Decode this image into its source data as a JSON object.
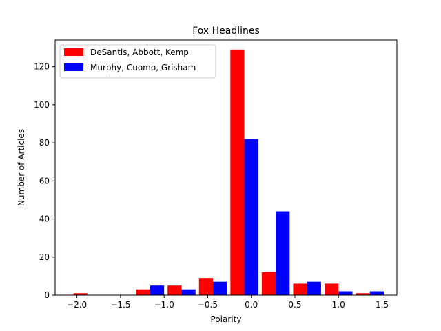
{
  "chart_data": {
    "type": "bar",
    "title": "Fox Headlines",
    "xlabel": "Polarity",
    "ylabel": "Number of Articles",
    "xlim": [
      -2.25,
      1.67
    ],
    "ylim": [
      0,
      134
    ],
    "xticks": [
      -2.0,
      -1.5,
      -1.0,
      -0.5,
      0.0,
      0.5,
      1.0,
      1.5
    ],
    "xtick_labels": [
      "−2.0",
      "−1.5",
      "−1.0",
      "−0.5",
      "0.0",
      "0.5",
      "1.0",
      "1.5"
    ],
    "yticks": [
      0,
      20,
      40,
      60,
      80,
      100,
      120
    ],
    "ytick_labels": [
      "0",
      "20",
      "40",
      "60",
      "80",
      "100",
      "120"
    ],
    "bar_width": 0.16,
    "grid": false,
    "legend_position": "top-left",
    "series": [
      {
        "name": "DeSantis, Abbott, Kemp",
        "color": "#ff0000",
        "bins": [
          {
            "x": -1.96,
            "value": 1
          },
          {
            "x": -1.24,
            "value": 3
          },
          {
            "x": -0.88,
            "value": 5
          },
          {
            "x": -0.52,
            "value": 9
          },
          {
            "x": -0.16,
            "value": 129
          },
          {
            "x": 0.2,
            "value": 12
          },
          {
            "x": 0.56,
            "value": 6
          },
          {
            "x": 0.92,
            "value": 6
          },
          {
            "x": 1.28,
            "value": 1
          }
        ]
      },
      {
        "name": "Murphy, Cuomo, Grisham",
        "color": "#0000ff",
        "bins": [
          {
            "x": -1.08,
            "value": 5
          },
          {
            "x": -0.72,
            "value": 3
          },
          {
            "x": -0.36,
            "value": 7
          },
          {
            "x": 0.0,
            "value": 82
          },
          {
            "x": 0.36,
            "value": 44
          },
          {
            "x": 0.72,
            "value": 7
          },
          {
            "x": 1.08,
            "value": 2
          },
          {
            "x": 1.44,
            "value": 2
          }
        ]
      }
    ]
  }
}
